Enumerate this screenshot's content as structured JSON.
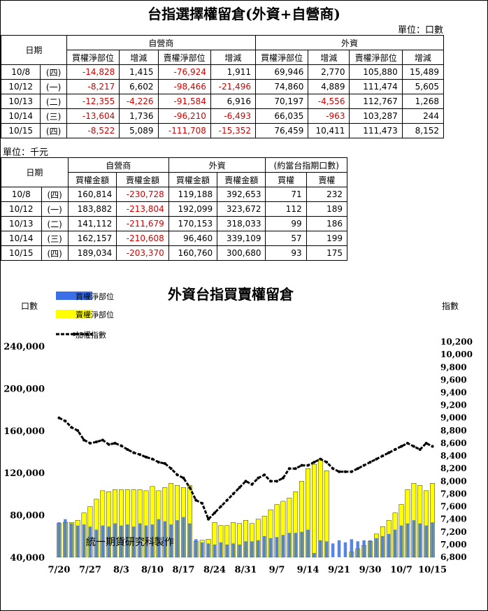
{
  "title": "台指選擇權留倉(外資+自營商)",
  "table1": {
    "unit": "單位：口數",
    "date_header": "日期",
    "group_headers": [
      "自營商",
      "外資"
    ],
    "sub_headers": [
      "買權淨部位",
      "增減",
      "賣權淨部位",
      "增減",
      "買權淨部位",
      "增減",
      "賣權淨部位",
      "增減"
    ],
    "rows": [
      {
        "date": "10/8",
        "dow": "(四)",
        "cells": [
          "-14,828",
          "1,415",
          "-76,924",
          "1,911",
          "69,946",
          "2,770",
          "105,880",
          "15,489"
        ]
      },
      {
        "date": "10/12",
        "dow": "(一)",
        "cells": [
          "-8,217",
          "6,602",
          "-98,466",
          "-21,496",
          "74,860",
          "4,889",
          "111,474",
          "5,605"
        ]
      },
      {
        "date": "10/13",
        "dow": "(二)",
        "cells": [
          "-12,355",
          "-4,226",
          "-91,584",
          "6,916",
          "70,197",
          "-4,556",
          "112,767",
          "1,268"
        ]
      },
      {
        "date": "10/14",
        "dow": "(三)",
        "cells": [
          "-13,604",
          "1,736",
          "-96,210",
          "-6,493",
          "66,035",
          "-963",
          "103,287",
          "244"
        ]
      },
      {
        "date": "10/15",
        "dow": "(四)",
        "cells": [
          "-8,522",
          "5,089",
          "-111,708",
          "-15,352",
          "76,459",
          "10,411",
          "111,473",
          "8,152"
        ]
      }
    ]
  },
  "table2": {
    "unit": "單位：千元",
    "date_header": "日期",
    "group_headers": [
      "自營商",
      "外資",
      "(約當台指期口數)"
    ],
    "sub_headers": [
      "買權金額",
      "賣權金額",
      "買權金額",
      "賣權金額",
      "買權",
      "賣權"
    ],
    "rows": [
      {
        "date": "10/8",
        "dow": "(四)",
        "cells": [
          "160,814",
          "-230,728",
          "119,188",
          "392,653",
          "71",
          "232"
        ]
      },
      {
        "date": "10/12",
        "dow": "(一)",
        "cells": [
          "183,882",
          "-213,804",
          "192,099",
          "323,672",
          "112",
          "189"
        ]
      },
      {
        "date": "10/13",
        "dow": "(二)",
        "cells": [
          "141,112",
          "-211,679",
          "170,153",
          "318,033",
          "99",
          "186"
        ]
      },
      {
        "date": "10/14",
        "dow": "(三)",
        "cells": [
          "162,157",
          "-210,608",
          "96,460",
          "339,109",
          "57",
          "199"
        ]
      },
      {
        "date": "10/15",
        "dow": "(四)",
        "cells": [
          "189,034",
          "-203,370",
          "160,760",
          "300,680",
          "93",
          "175"
        ]
      }
    ]
  },
  "chart_data": {
    "type": "bar",
    "title": "外資台指買賣權留倉",
    "left_axis_label": "口數",
    "right_axis_label": "指數",
    "watermark": "統一期貨研究科製作",
    "left_ylim": [
      40000,
      250000
    ],
    "left_ticks": [
      "240,000",
      "200,000",
      "160,000",
      "120,000",
      "80,000",
      "40,000"
    ],
    "left_tick_values": [
      240000,
      200000,
      160000,
      120000,
      80000,
      40000
    ],
    "right_ylim": [
      6800,
      10300
    ],
    "right_ticks": [
      "10,200",
      "10,000",
      "9,800",
      "9,600",
      "9,400",
      "9,200",
      "9,000",
      "8,800",
      "8,600",
      "8,400",
      "8,200",
      "8,000",
      "7,800",
      "7,600",
      "7,400",
      "7,200",
      "7,000",
      "6,800"
    ],
    "right_tick_values": [
      10200,
      10000,
      9800,
      9600,
      9400,
      9200,
      9000,
      8800,
      8600,
      8400,
      8200,
      8000,
      7800,
      7600,
      7400,
      7200,
      7000,
      6800
    ],
    "x_tick_labels": [
      "7/20",
      "7/27",
      "8/3",
      "8/10",
      "8/17",
      "8/24",
      "8/31",
      "9/7",
      "9/14",
      "9/21",
      "9/30",
      "10/7",
      "10/15"
    ],
    "x_tick_positions": [
      0,
      5,
      10,
      15,
      20,
      25,
      30,
      35,
      40,
      45,
      50,
      55,
      60
    ],
    "series": [
      {
        "name": "買權淨部位",
        "color": "#3a6fe8",
        "values": [
          73000,
          76000,
          72000,
          70000,
          71000,
          69000,
          66000,
          70000,
          69000,
          72000,
          70000,
          71000,
          69000,
          72000,
          70000,
          71000,
          76000,
          74000,
          71000,
          75000,
          78000,
          72000,
          57000,
          54000,
          53000,
          52000,
          54000,
          52000,
          53000,
          52000,
          55000,
          55000,
          56000,
          60000,
          58000,
          59000,
          61000,
          63000,
          63000,
          64000,
          66000,
          44000,
          56000,
          55000,
          53000,
          56000,
          54000,
          57000,
          55000,
          56000,
          56000,
          58000,
          60000,
          62000,
          66000,
          70000,
          72000,
          75000,
          72000,
          70000,
          73000
        ]
      },
      {
        "name": "賣權淨部位",
        "color": "#ffff00",
        "values": [
          72000,
          73000,
          73000,
          75000,
          82000,
          88000,
          95000,
          103000,
          102000,
          104000,
          104000,
          104000,
          104000,
          104000,
          103000,
          107000,
          103000,
          106000,
          110000,
          108000,
          106000,
          108000,
          55000,
          56000,
          57000,
          73000,
          70000,
          70000,
          73000,
          72000,
          75000,
          72000,
          76000,
          79000,
          85000,
          90000,
          93000,
          96000,
          102000,
          112000,
          124000,
          128000,
          133000,
          122000,
          25000,
          26000,
          30000,
          45000,
          48000,
          51000,
          55000,
          62000,
          69000,
          75000,
          82000,
          90000,
          104000,
          110000,
          108000,
          103000,
          110000
        ]
      },
      {
        "name": "加權指數",
        "color": "#000000",
        "values": [
          9000,
          8950,
          8850,
          8800,
          8650,
          8600,
          8620,
          8650,
          8580,
          8600,
          8560,
          8500,
          8450,
          8420,
          8380,
          8350,
          8300,
          8280,
          8200,
          8100,
          8050,
          7900,
          7700,
          7650,
          7400,
          7500,
          7600,
          7700,
          7800,
          7900,
          8000,
          7950,
          8050,
          8100,
          8000,
          8000,
          8050,
          8200,
          8200,
          8250,
          8250,
          8300,
          8350,
          8300,
          8200,
          8150,
          8150,
          8150,
          8200,
          8250,
          8300,
          8350,
          8400,
          8450,
          8500,
          8550,
          8600,
          8550,
          8500,
          8600,
          8550
        ]
      }
    ]
  }
}
